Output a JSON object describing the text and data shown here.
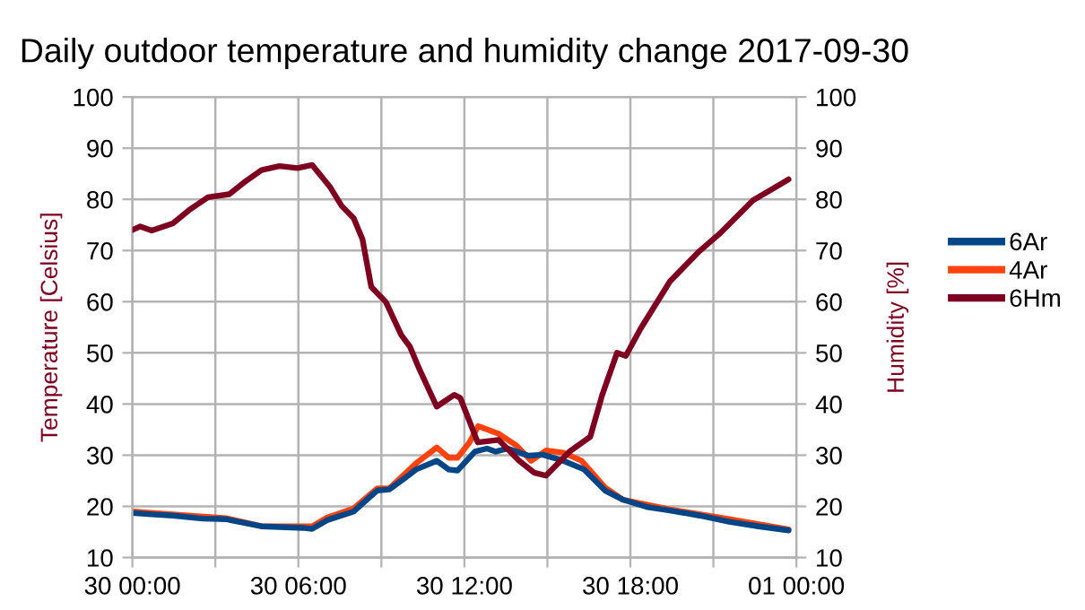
{
  "chart_data": {
    "type": "line",
    "title": "Daily outdoor temperature and humidity change 2017-09-30",
    "ylabel": "Temperature [Celsius]",
    "y2label": "Humidity [%]",
    "xlim": [
      "2017-09-30T00:00",
      "2017-10-01T00:00"
    ],
    "xticks": [
      {
        "value": "2017-09-30T00:00",
        "label": "30 00:00"
      },
      {
        "value": "2017-09-30T03:00",
        "label": null
      },
      {
        "value": "2017-09-30T06:00",
        "label": "30 06:00"
      },
      {
        "value": "2017-09-30T09:00",
        "label": null
      },
      {
        "value": "2017-09-30T12:00",
        "label": "30 12:00"
      },
      {
        "value": "2017-09-30T15:00",
        "label": null
      },
      {
        "value": "2017-09-30T18:00",
        "label": "30 18:00"
      },
      {
        "value": "2017-09-30T21:00",
        "label": null
      },
      {
        "value": "2017-10-01T00:00",
        "label": "01 00:00"
      }
    ],
    "ylim": [
      10,
      100
    ],
    "yticks": [
      10,
      20,
      30,
      40,
      50,
      60,
      70,
      80,
      90,
      100
    ],
    "y2lim": [
      10,
      100
    ],
    "y2ticks": [
      10,
      20,
      30,
      40,
      50,
      60,
      70,
      80,
      90,
      100
    ],
    "grid": true,
    "legend": "right",
    "marker": "none",
    "line_style": "solid",
    "series": [
      {
        "name": "6Ar",
        "color": "#004586",
        "x": [
          "2017-09-30T00:00",
          "2017-09-30T00:49",
          "2017-09-30T01:28",
          "2017-09-30T02:32",
          "2017-09-30T03:23",
          "2017-09-30T04:40",
          "2017-09-30T06:10",
          "2017-09-30T06:30",
          "2017-09-30T07:02",
          "2017-09-30T08:00",
          "2017-09-30T08:32",
          "2017-09-30T08:51",
          "2017-09-30T09:17",
          "2017-09-30T09:49",
          "2017-09-30T10:15",
          "2017-09-30T11:00",
          "2017-09-30T11:26",
          "2017-09-30T11:45",
          "2017-09-30T12:23",
          "2017-09-30T12:49",
          "2017-09-30T13:08",
          "2017-09-30T13:34",
          "2017-09-30T14:19",
          "2017-09-30T14:50",
          "2017-09-30T15:35",
          "2017-09-30T16:20",
          "2017-09-30T17:05",
          "2017-09-30T17:44",
          "2017-09-30T18:35",
          "2017-09-30T19:26",
          "2017-09-30T20:30",
          "2017-09-30T21:34",
          "2017-09-30T22:38",
          "2017-09-30T23:43"
        ],
        "values": [
          18.7,
          18.4,
          18.2,
          17.6,
          17.5,
          16.1,
          15.8,
          15.6,
          17.3,
          19.0,
          21.6,
          23.1,
          23.3,
          25.4,
          27.2,
          28.9,
          27.2,
          27.0,
          30.7,
          31.3,
          30.7,
          31.3,
          29.9,
          30.1,
          28.9,
          27.2,
          23.1,
          21.3,
          19.9,
          19.2,
          18.2,
          17.0,
          16.1,
          15.3
        ]
      },
      {
        "name": "4Ar",
        "color": "#ff420e",
        "x": [
          "2017-09-30T00:00",
          "2017-09-30T03:23",
          "2017-09-30T04:40",
          "2017-09-30T06:30",
          "2017-09-30T07:02",
          "2017-09-30T08:00",
          "2017-09-30T08:51",
          "2017-09-30T09:17",
          "2017-09-30T10:15",
          "2017-09-30T11:00",
          "2017-09-30T11:26",
          "2017-09-30T11:45",
          "2017-09-30T12:11",
          "2017-09-30T12:30",
          "2017-09-30T13:14",
          "2017-09-30T13:53",
          "2017-09-30T14:25",
          "2017-09-30T14:57",
          "2017-09-30T15:35",
          "2017-09-30T16:14",
          "2017-09-30T17:05",
          "2017-09-30T17:44",
          "2017-09-30T19:26",
          "2017-09-30T21:34",
          "2017-09-30T23:43"
        ],
        "values": [
          19.0,
          17.7,
          16.1,
          16.1,
          17.8,
          19.6,
          23.5,
          23.5,
          28.4,
          31.5,
          29.5,
          29.5,
          32.5,
          35.7,
          34.2,
          31.9,
          28.9,
          30.9,
          30.5,
          28.9,
          23.7,
          21.3,
          19.4,
          17.5,
          15.5
        ]
      },
      {
        "name": "6Hm",
        "color": "#7e0021",
        "axis": "y2",
        "x": [
          "2017-09-30T00:00",
          "2017-09-30T00:17",
          "2017-09-30T00:42",
          "2017-09-30T01:28",
          "2017-09-30T02:06",
          "2017-09-30T02:44",
          "2017-09-30T03:30",
          "2017-09-30T04:02",
          "2017-09-30T04:40",
          "2017-09-30T05:19",
          "2017-09-30T05:58",
          "2017-09-30T06:30",
          "2017-09-30T07:08",
          "2017-09-30T07:34",
          "2017-09-30T08:00",
          "2017-09-30T08:19",
          "2017-09-30T08:38",
          "2017-09-30T09:10",
          "2017-09-30T09:43",
          "2017-09-30T10:02",
          "2017-09-30T10:21",
          "2017-09-30T11:00",
          "2017-09-30T11:38",
          "2017-09-30T11:51",
          "2017-09-30T12:29",
          "2017-09-30T13:14",
          "2017-09-30T13:59",
          "2017-09-30T14:31",
          "2017-09-30T14:57",
          "2017-09-30T15:48",
          "2017-09-30T16:33",
          "2017-09-30T16:59",
          "2017-09-30T17:31",
          "2017-09-30T17:50",
          "2017-09-30T18:22",
          "2017-09-30T19:26",
          "2017-09-30T20:30",
          "2017-09-30T21:15",
          "2017-09-30T22:26",
          "2017-09-30T23:11",
          "2017-09-30T23:43"
        ],
        "values": [
          74.0,
          74.7,
          73.9,
          75.3,
          78.1,
          80.4,
          81.0,
          83.3,
          85.7,
          86.5,
          86.1,
          86.7,
          82.5,
          78.7,
          76.3,
          72.2,
          62.9,
          59.9,
          53.5,
          51.2,
          47.1,
          39.5,
          41.8,
          41.2,
          32.5,
          33.0,
          28.9,
          26.6,
          26.0,
          30.7,
          33.6,
          41.8,
          50.0,
          49.4,
          54.7,
          64.0,
          69.9,
          73.4,
          79.8,
          82.2,
          83.9
        ]
      }
    ]
  }
}
